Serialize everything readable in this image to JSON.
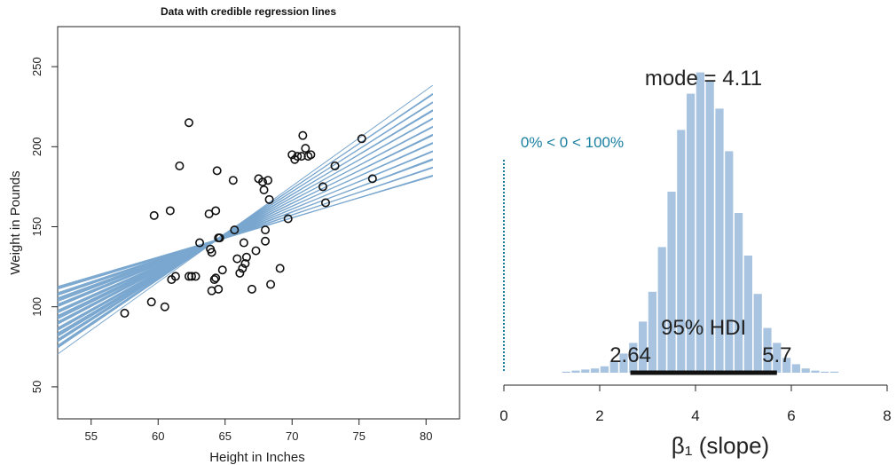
{
  "colors": {
    "line": "#7aa7cf",
    "bar": "#a8c4e0",
    "point": "#111111",
    "hdi": "#111111",
    "zero": "#1a7fa0"
  },
  "chart_data": [
    {
      "type": "scatter",
      "title": "Data with credible regression lines",
      "xlabel": "Height in Inches",
      "ylabel": "Weight in Pounds",
      "xlim": [
        52.5,
        82.5
      ],
      "ylim": [
        30,
        275
      ],
      "xticks": [
        "55",
        "60",
        "65",
        "70",
        "75",
        "80"
      ],
      "yticks": [
        "50",
        "100",
        "150",
        "200",
        "250"
      ],
      "points": [
        [
          57.5,
          96
        ],
        [
          59.7,
          157
        ],
        [
          59.5,
          103
        ],
        [
          60.5,
          100
        ],
        [
          60.9,
          160
        ],
        [
          61.0,
          117
        ],
        [
          61.3,
          119
        ],
        [
          61.6,
          188
        ],
        [
          62.3,
          215
        ],
        [
          62.3,
          119
        ],
        [
          62.5,
          119
        ],
        [
          62.8,
          119
        ],
        [
          63.1,
          140
        ],
        [
          63.8,
          158
        ],
        [
          63.9,
          136
        ],
        [
          64.0,
          134
        ],
        [
          64.0,
          110
        ],
        [
          64.2,
          117
        ],
        [
          64.3,
          160
        ],
        [
          64.3,
          118
        ],
        [
          64.4,
          185
        ],
        [
          64.5,
          111
        ],
        [
          64.5,
          143
        ],
        [
          64.6,
          143
        ],
        [
          64.8,
          123
        ],
        [
          65.6,
          179
        ],
        [
          65.7,
          148
        ],
        [
          65.9,
          130
        ],
        [
          66.1,
          121
        ],
        [
          66.3,
          124
        ],
        [
          66.4,
          140
        ],
        [
          66.5,
          127
        ],
        [
          66.6,
          131
        ],
        [
          67.0,
          111
        ],
        [
          67.3,
          135
        ],
        [
          67.5,
          180
        ],
        [
          67.8,
          178
        ],
        [
          67.9,
          173
        ],
        [
          68.0,
          148
        ],
        [
          68.0,
          141
        ],
        [
          68.2,
          179
        ],
        [
          68.3,
          167
        ],
        [
          68.4,
          114
        ],
        [
          69.1,
          124
        ],
        [
          69.7,
          155
        ],
        [
          70.0,
          195
        ],
        [
          70.2,
          192
        ],
        [
          70.4,
          194
        ],
        [
          70.7,
          194
        ],
        [
          70.8,
          207
        ],
        [
          71.0,
          199
        ],
        [
          71.2,
          194
        ],
        [
          71.4,
          195
        ],
        [
          72.3,
          175
        ],
        [
          72.5,
          165
        ],
        [
          73.2,
          188
        ],
        [
          75.2,
          205
        ],
        [
          76.0,
          180
        ]
      ],
      "regression": {
        "x_range": [
          52.5,
          80.5
        ],
        "intercept_at_x52_5": [
          73,
          113
        ],
        "intercept_at_x80_5": [
          180,
          236
        ],
        "n_lines": 48
      }
    },
    {
      "type": "bar",
      "title": "",
      "xlabel": "β₁ (slope)",
      "xlim": [
        0,
        8
      ],
      "xticks": [
        "0",
        "2",
        "4",
        "6",
        "8"
      ],
      "bin_width": 0.2,
      "bin_starts": [
        1.2,
        1.4,
        1.6,
        1.8,
        2.0,
        2.2,
        2.4,
        2.6,
        2.8,
        3.0,
        3.2,
        3.4,
        3.6,
        3.8,
        4.0,
        4.2,
        4.4,
        4.6,
        4.8,
        5.0,
        5.2,
        5.4,
        5.6,
        5.8,
        6.0,
        6.2,
        6.4,
        6.6,
        6.8
      ],
      "heights": [
        1,
        2,
        3,
        4,
        6,
        11,
        18,
        28,
        48,
        76,
        118,
        170,
        228,
        262,
        282,
        274,
        248,
        208,
        150,
        110,
        74,
        42,
        28,
        14,
        8,
        4,
        2,
        1,
        1
      ],
      "mode_label": "mode = 4.11",
      "hdi_label": "95% HDI",
      "hdi": [
        2.64,
        5.7
      ],
      "hdi_low_label": "2.64",
      "hdi_high_label": "5.7",
      "comp_label": "0% < 0 < 100%",
      "comp_value": 0
    }
  ]
}
